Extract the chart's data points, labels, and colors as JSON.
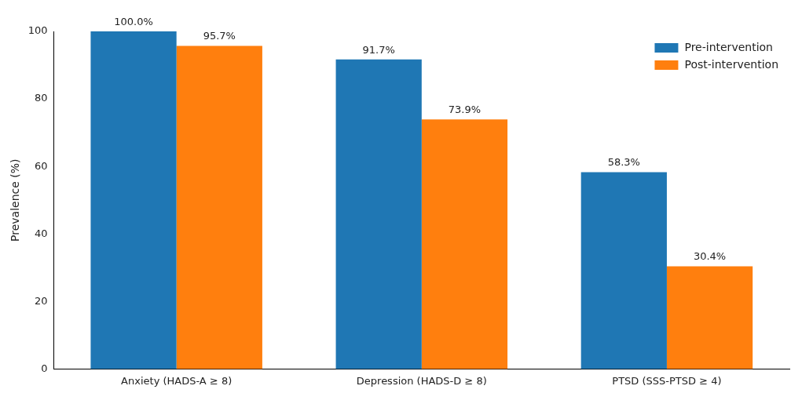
{
  "chart_data": {
    "type": "bar",
    "ylabel": "Prevalence (%)",
    "categories": [
      "Anxiety (HADS-A ≥ 8)",
      "Depression (HADS-D ≥ 8)",
      "PTSD (SSS-PTSD ≥ 4)"
    ],
    "series": [
      {
        "name": "Pre-intervention",
        "color": "#1f77b4",
        "values": [
          100.0,
          91.7,
          58.3
        ],
        "value_labels": [
          "100.0%",
          "91.7%",
          "58.3%"
        ]
      },
      {
        "name": "Post-intervention",
        "color": "#ff7f0e",
        "values": [
          95.7,
          73.9,
          30.4
        ],
        "value_labels": [
          "95.7%",
          "73.9%",
          "30.4%"
        ]
      }
    ],
    "ylim": [
      0,
      100
    ],
    "yticks": [
      0,
      20,
      40,
      60,
      80,
      100
    ],
    "grid": false,
    "legend": "top right"
  }
}
